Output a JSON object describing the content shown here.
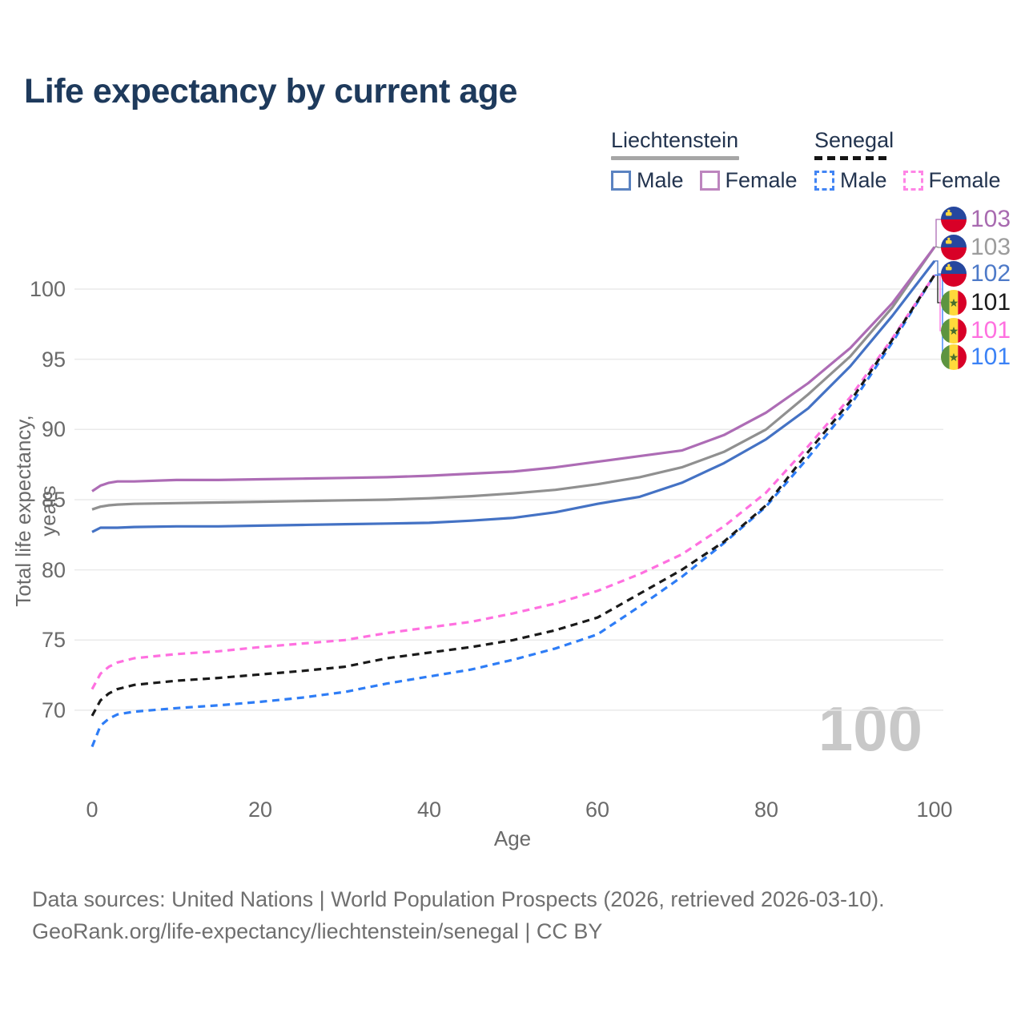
{
  "title": "Life expectancy by current age",
  "watermark_age": "100",
  "legend": {
    "groups": [
      {
        "label": "Liechtenstein",
        "line_style": "solid",
        "underline_color": "#a6a6a6",
        "items": [
          {
            "label": "Male",
            "color": "#5b83c1",
            "dashed": false
          },
          {
            "label": "Female",
            "color": "#bd85be",
            "dashed": false
          }
        ]
      },
      {
        "label": "Senegal",
        "line_style": "dashed",
        "underline_color": "#141414",
        "items": [
          {
            "label": "Male",
            "color": "#4285f4",
            "dashed": true
          },
          {
            "label": "Female",
            "color": "#ff85e6",
            "dashed": true
          }
        ]
      }
    ]
  },
  "footer": {
    "line1": "Data sources: United Nations | World Population Prospects (2026, retrieved 2026-03-10).",
    "line2": "GeoRank.org/life-expectancy/liechtenstein/senegal | CC BY"
  },
  "chart_data": {
    "type": "line",
    "title": "Life expectancy by current age",
    "xlabel": "Age",
    "ylabel": "Total life expectancy, years",
    "xlim": [
      0,
      100
    ],
    "ylim": [
      66,
      104
    ],
    "x_ticks": [
      0,
      20,
      40,
      60,
      80,
      100
    ],
    "y_ticks": [
      70,
      75,
      80,
      85,
      90,
      95,
      100
    ],
    "grid": "horizontal",
    "legend_position": "top-right",
    "x": [
      0,
      1,
      2,
      3,
      5,
      10,
      15,
      20,
      25,
      30,
      35,
      40,
      45,
      50,
      55,
      60,
      65,
      70,
      75,
      80,
      85,
      90,
      95,
      100
    ],
    "series": [
      {
        "name": "Liechtenstein Female",
        "country": "Liechtenstein",
        "sex": "Female",
        "color": "#ad6cb5",
        "dashed": false,
        "flag": "liechtenstein",
        "end_label": "103",
        "label_color": "#a86ab0",
        "values": [
          85.6,
          86.0,
          86.2,
          86.3,
          86.3,
          86.4,
          86.4,
          86.45,
          86.5,
          86.55,
          86.6,
          86.7,
          86.85,
          87.0,
          87.3,
          87.7,
          88.1,
          88.5,
          89.6,
          91.2,
          93.3,
          95.8,
          99.0,
          103
        ]
      },
      {
        "name": "Liechtenstein (both sexes)",
        "country": "Liechtenstein",
        "sex": "Both",
        "color": "#909090",
        "dashed": false,
        "flag": "liechtenstein",
        "end_label": "103",
        "label_color": "#9c9c9c",
        "values": [
          84.3,
          84.5,
          84.6,
          84.65,
          84.7,
          84.75,
          84.8,
          84.85,
          84.9,
          84.95,
          85.0,
          85.1,
          85.25,
          85.45,
          85.7,
          86.1,
          86.6,
          87.3,
          88.4,
          90.0,
          92.5,
          95.2,
          98.7,
          103
        ]
      },
      {
        "name": "Liechtenstein Male",
        "country": "Liechtenstein",
        "sex": "Male",
        "color": "#4472c4",
        "dashed": false,
        "flag": "liechtenstein",
        "end_label": "102",
        "label_color": "#4e7ac8",
        "values": [
          82.7,
          83.0,
          83.0,
          83.0,
          83.05,
          83.1,
          83.1,
          83.15,
          83.2,
          83.25,
          83.3,
          83.35,
          83.5,
          83.7,
          84.1,
          84.7,
          85.2,
          86.2,
          87.6,
          89.3,
          91.5,
          94.5,
          98.1,
          102
        ]
      },
      {
        "name": "Senegal (both sexes)",
        "country": "Senegal",
        "sex": "Both",
        "color": "#1a1a1a",
        "dashed": true,
        "flag": "senegal",
        "end_label": "101",
        "label_color": "#1a1a1a",
        "values": [
          69.6,
          70.7,
          71.2,
          71.5,
          71.8,
          72.1,
          72.3,
          72.55,
          72.8,
          73.1,
          73.7,
          74.1,
          74.5,
          75.0,
          75.7,
          76.6,
          78.3,
          80.0,
          82.0,
          84.6,
          88.4,
          92.0,
          96.4,
          101
        ]
      },
      {
        "name": "Senegal Female",
        "country": "Senegal",
        "sex": "Female",
        "color": "#ff70e0",
        "dashed": true,
        "flag": "senegal",
        "end_label": "101",
        "label_color": "#ff70e0",
        "values": [
          71.5,
          72.6,
          73.1,
          73.4,
          73.7,
          74.0,
          74.2,
          74.5,
          74.75,
          75.0,
          75.5,
          75.9,
          76.3,
          76.9,
          77.6,
          78.5,
          79.7,
          81.1,
          83.1,
          85.5,
          88.8,
          92.3,
          96.5,
          101
        ]
      },
      {
        "name": "Senegal Male",
        "country": "Senegal",
        "sex": "Male",
        "color": "#2e7df6",
        "dashed": true,
        "flag": "senegal",
        "end_label": "101",
        "label_color": "#3b82f6",
        "values": [
          67.4,
          68.9,
          69.4,
          69.7,
          69.9,
          70.15,
          70.35,
          70.6,
          70.9,
          71.3,
          71.9,
          72.4,
          72.9,
          73.6,
          74.4,
          75.4,
          77.4,
          79.5,
          81.9,
          84.5,
          88.0,
          91.7,
          96.2,
          101
        ]
      }
    ]
  }
}
